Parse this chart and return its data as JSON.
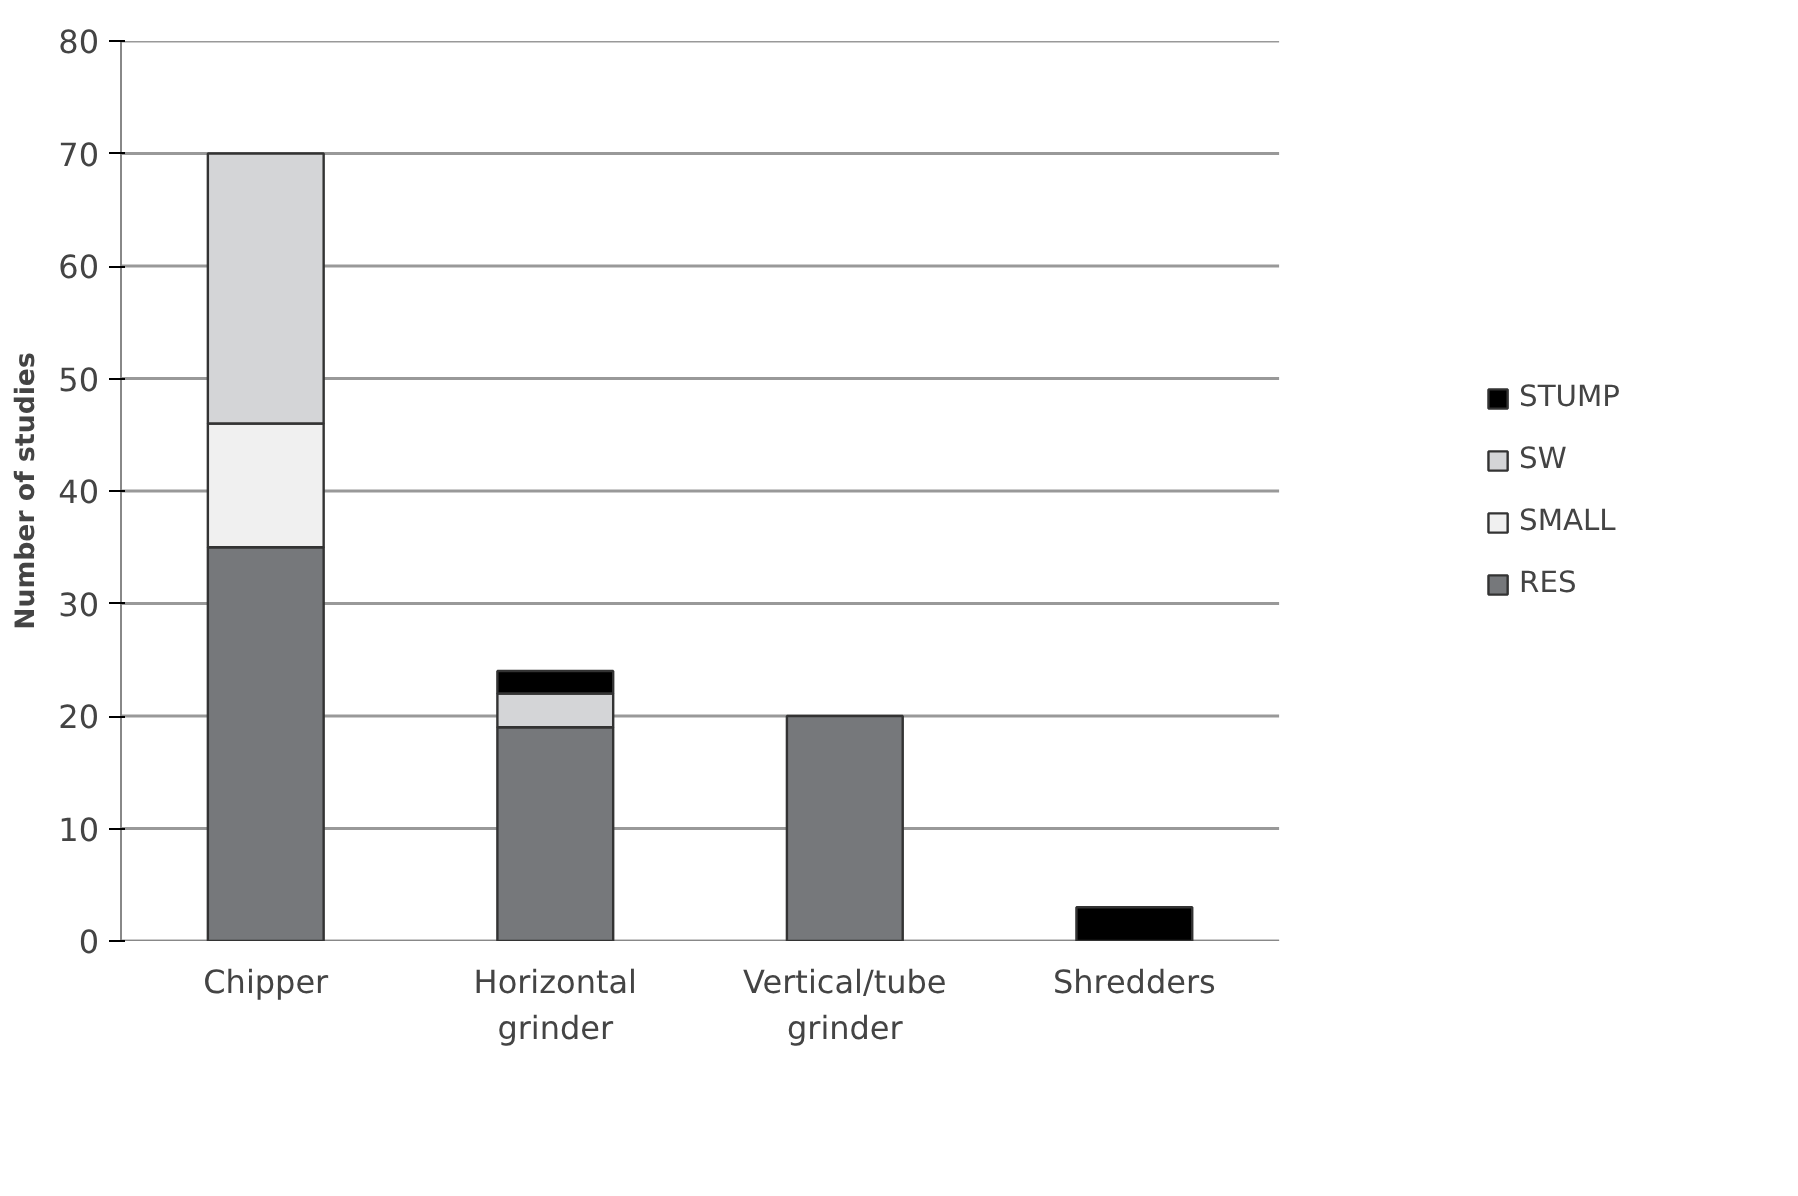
{
  "chart_data": {
    "type": "bar",
    "stacked": true,
    "ylabel": "Number of studies",
    "categories": [
      "Chipper",
      "Horizontal grinder",
      "Vertical/tube grinder",
      "Shredders"
    ],
    "series": [
      {
        "name": "RES",
        "color": "#76787b",
        "values": [
          35,
          19,
          20,
          0
        ]
      },
      {
        "name": "SMALL",
        "color": "#f0f0f0",
        "values": [
          11,
          0,
          0,
          0
        ]
      },
      {
        "name": "SW",
        "color": "#d4d5d7",
        "values": [
          24,
          3,
          0,
          0
        ]
      },
      {
        "name": "STUMP",
        "color": "#000000",
        "values": [
          0,
          2,
          0,
          3
        ]
      }
    ],
    "ylim": [
      0,
      80
    ],
    "yticks": [
      0,
      10,
      20,
      30,
      40,
      50,
      60,
      70,
      80
    ],
    "grid": "y",
    "legend": "right"
  }
}
